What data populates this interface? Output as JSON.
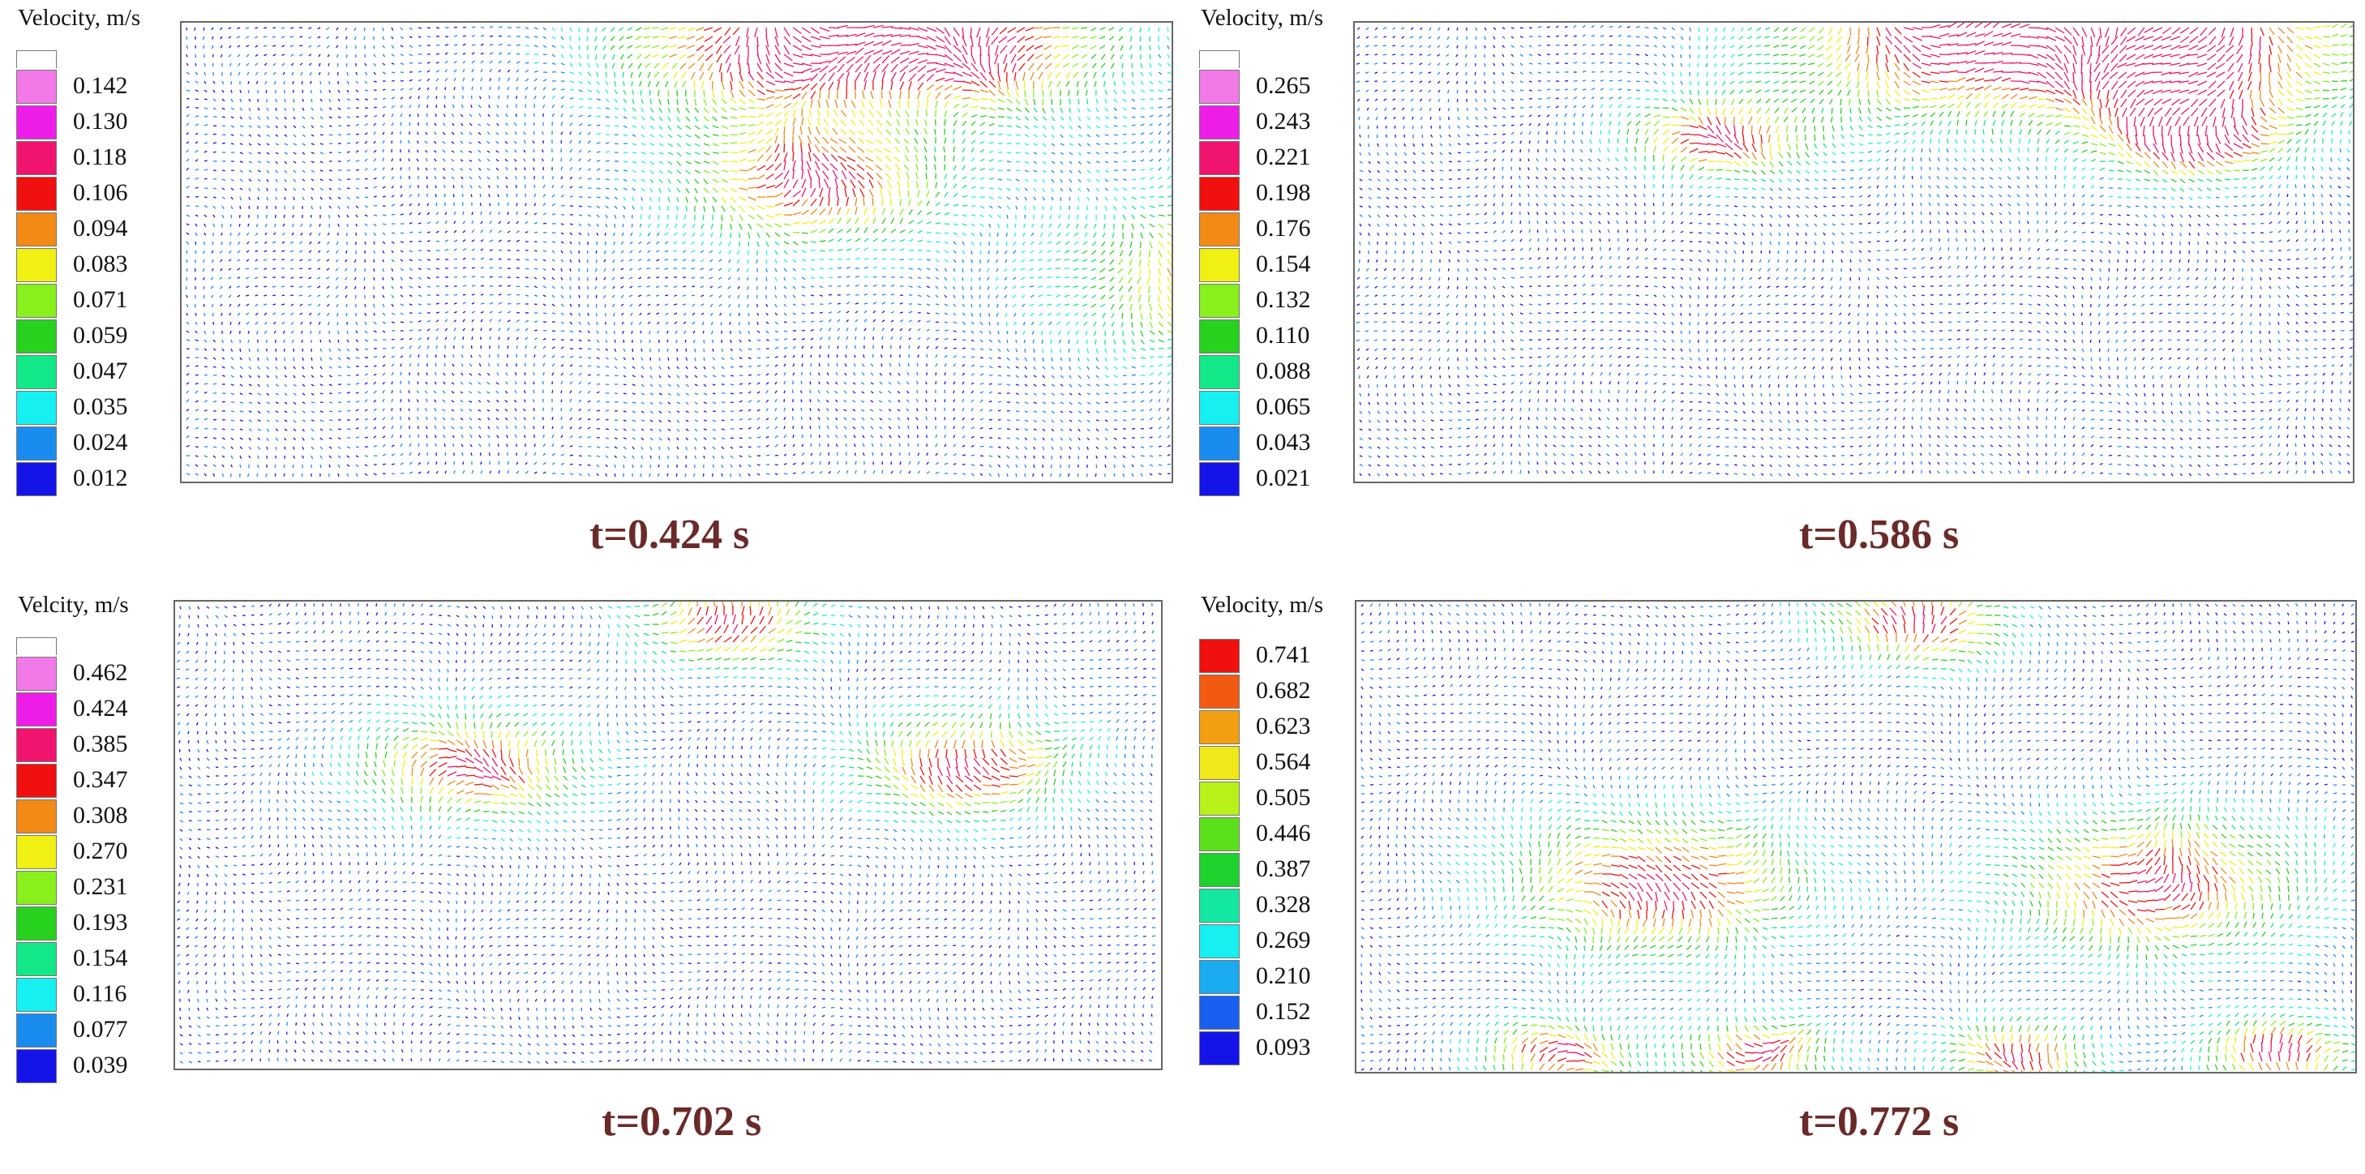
{
  "panels": [
    {
      "legend_title": "Velocity, m/s",
      "legend_values": [
        "0.142",
        "0.130",
        "0.118",
        "0.106",
        "0.094",
        "0.083",
        "0.071",
        "0.059",
        "0.047",
        "0.035",
        "0.024",
        "0.012"
      ],
      "legend_colors": [
        "#f27ae8",
        "#ee1ee8",
        "#f0146e",
        "#f01010",
        "#f28a16",
        "#f0f012",
        "#88f01a",
        "#26d21e",
        "#12e888",
        "#16f0f0",
        "#1a8cf0",
        "#1414e8"
      ],
      "time_label": "t=0.424 s"
    },
    {
      "legend_title": "Velocity, m/s",
      "legend_values": [
        "0.265",
        "0.243",
        "0.221",
        "0.198",
        "0.176",
        "0.154",
        "0.132",
        "0.110",
        "0.088",
        "0.065",
        "0.043",
        "0.021"
      ],
      "legend_colors": [
        "#f27ae8",
        "#ee1ee8",
        "#f0146e",
        "#f01010",
        "#f28a16",
        "#f0f012",
        "#88f01a",
        "#26d21e",
        "#12e888",
        "#16f0f0",
        "#1a8cf0",
        "#1414e8"
      ],
      "time_label": "t=0.586 s"
    },
    {
      "legend_title": "Velcity, m/s",
      "legend_values": [
        "0.462",
        "0.424",
        "0.385",
        "0.347",
        "0.308",
        "0.270",
        "0.231",
        "0.193",
        "0.154",
        "0.116",
        "0.077",
        "0.039"
      ],
      "legend_colors": [
        "#f27ae8",
        "#ee1ee8",
        "#f0146e",
        "#f01010",
        "#f28a16",
        "#f0f012",
        "#88f01a",
        "#26d21e",
        "#12e888",
        "#16f0f0",
        "#1a8cf0",
        "#1414e8"
      ],
      "time_label": "t=0.702 s"
    },
    {
      "legend_title": "Velocity, m/s",
      "legend_values": [
        "0.741",
        "0.682",
        "0.623",
        "0.564",
        "0.505",
        "0.446",
        "0.387",
        "0.328",
        "0.269",
        "0.210",
        "0.152",
        "0.093"
      ],
      "legend_colors": [
        "#f01010",
        "#f25a12",
        "#f2a012",
        "#f0e818",
        "#b8f01a",
        "#5ce01c",
        "#1ed22e",
        "#12e8a0",
        "#16f0f0",
        "#1aaaf0",
        "#1a60f0",
        "#1414e8"
      ],
      "time_label": "t=0.772 s"
    }
  ]
}
